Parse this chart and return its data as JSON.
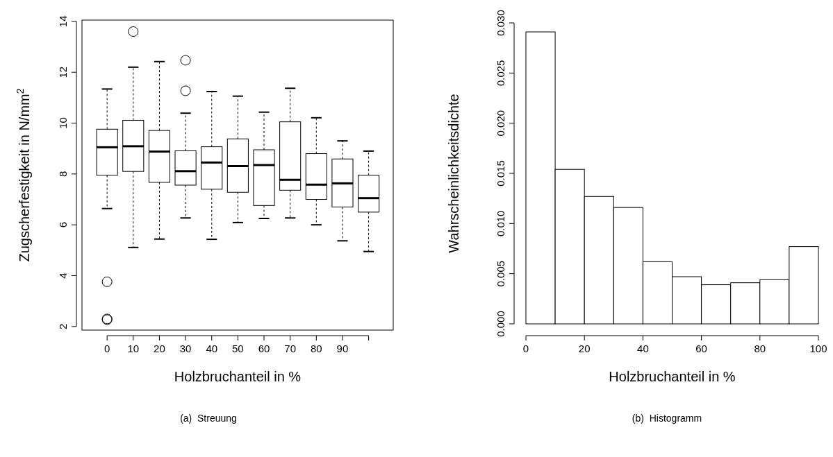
{
  "chart_data": [
    {
      "type": "box",
      "xlabel": "Holzbruchanteil in %",
      "ylabel": "Zugscherfestigkeit in N/mm$^{2}$",
      "categories": [
        "0",
        "10",
        "20",
        "30",
        "40",
        "50",
        "60",
        "70",
        "80",
        "90",
        null
      ],
      "ylim": [
        1.86,
        14.05
      ],
      "yticks": [
        2,
        4,
        6,
        8,
        10,
        12,
        14
      ],
      "annotations": [
        "(a)  Streuung"
      ],
      "boxes": [
        {
          "low": 6.64,
          "q1": 7.95,
          "median": 9.05,
          "q3": 9.76,
          "high": 11.34,
          "outliers": [
            3.76,
            2.3,
            2.27
          ]
        },
        {
          "low": 5.11,
          "q1": 8.1,
          "median": 9.09,
          "q3": 10.11,
          "high": 12.2,
          "outliers": [
            13.6
          ]
        },
        {
          "low": 5.44,
          "q1": 7.67,
          "median": 8.88,
          "q3": 9.71,
          "high": 12.42
        },
        {
          "low": 6.27,
          "q1": 7.56,
          "median": 8.11,
          "q3": 8.91,
          "high": 10.39,
          "outliers": [
            12.47,
            11.27
          ]
        },
        {
          "low": 5.43,
          "q1": 7.4,
          "median": 8.45,
          "q3": 9.07,
          "high": 11.24
        },
        {
          "low": 6.09,
          "q1": 7.28,
          "median": 8.31,
          "q3": 9.38,
          "high": 11.06
        },
        {
          "low": 6.25,
          "q1": 6.76,
          "median": 8.35,
          "q3": 8.95,
          "high": 10.43
        },
        {
          "low": 6.27,
          "q1": 7.36,
          "median": 7.77,
          "q3": 10.05,
          "high": 11.37
        },
        {
          "low": 6.0,
          "q1": 7.0,
          "median": 7.58,
          "q3": 8.8,
          "high": 10.21
        },
        {
          "low": 5.37,
          "q1": 6.7,
          "median": 7.63,
          "q3": 8.59,
          "high": 9.3
        },
        {
          "low": 4.95,
          "q1": 6.5,
          "median": 7.05,
          "q3": 7.95,
          "high": 8.9
        }
      ]
    },
    {
      "type": "histogram",
      "xlabel": "Holzbruchanteil in %",
      "ylabel": "Wahrscheinlichkeitsdichte",
      "annotations": [
        "(b)  Histogramm"
      ],
      "bins": [
        0,
        10,
        20,
        30,
        40,
        50,
        60,
        70,
        80,
        90,
        100
      ],
      "values": [
        0.0291,
        0.0154,
        0.0127,
        0.0116,
        0.0062,
        0.0047,
        0.0039,
        0.0041,
        0.0044,
        0.0077
      ],
      "xlim": [
        0,
        100
      ],
      "xticks": [
        0,
        20,
        40,
        60,
        80,
        100
      ],
      "ylim": [
        0,
        0.03
      ],
      "yticks": [
        {
          "value": 0,
          "label": "0.000"
        },
        {
          "value": 0.005,
          "label": "0.005"
        },
        {
          "value": 0.01,
          "label": "0.010"
        },
        {
          "value": 0.015,
          "label": "0.015"
        },
        {
          "value": 0.02,
          "label": "0.020"
        },
        {
          "value": 0.025,
          "label": "0.025"
        },
        {
          "value": 0.03,
          "label": "0.030"
        }
      ]
    }
  ]
}
